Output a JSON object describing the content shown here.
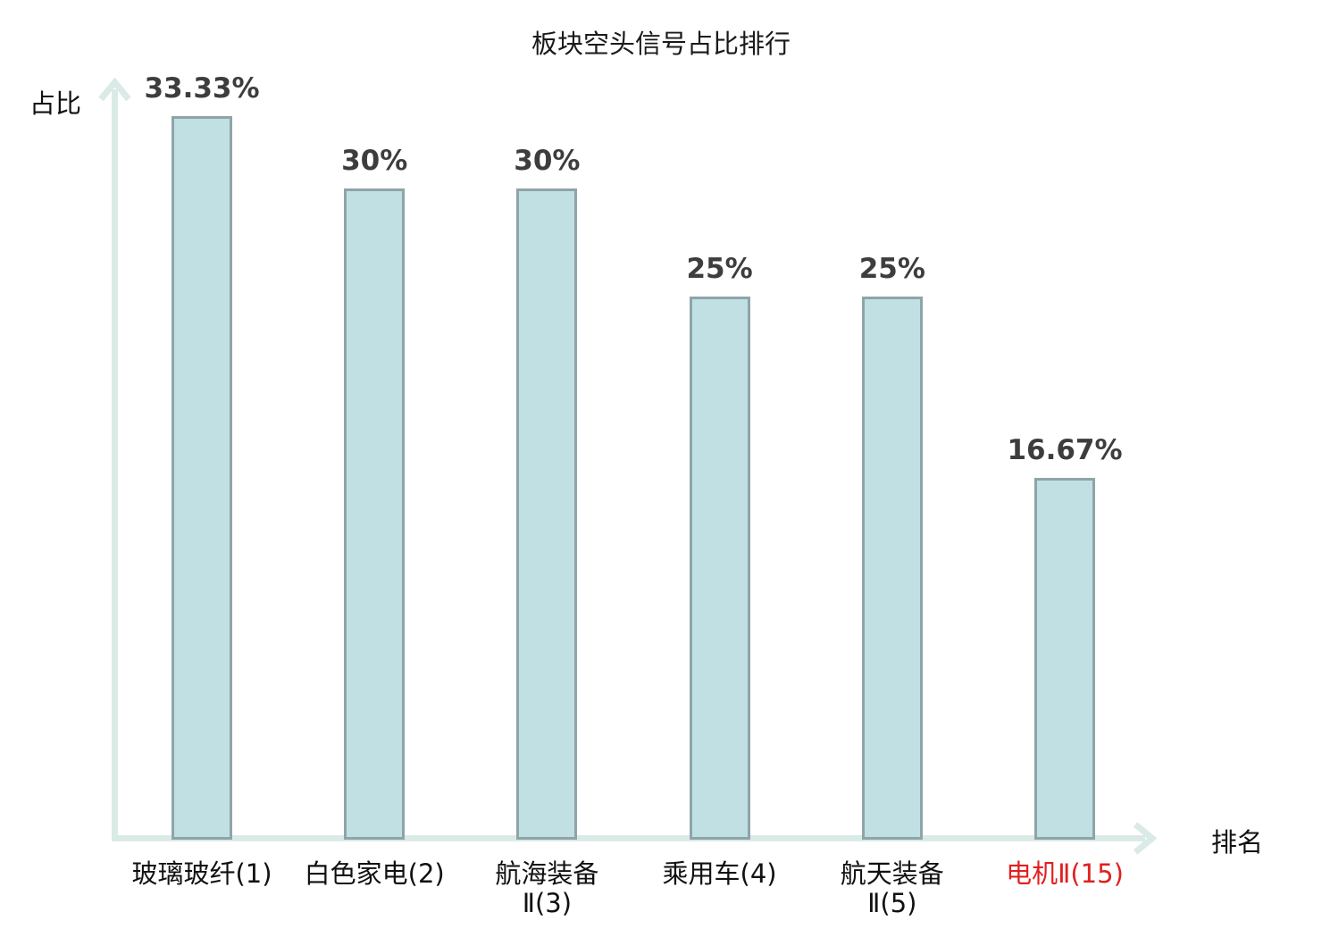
{
  "title": "板块空头信号占比排行",
  "axes": {
    "y_label": "占比",
    "x_label": "排名"
  },
  "colors": {
    "bar_fill": "#c1e0e4",
    "bar_border": "#8fa4a8",
    "axis": "#daeae7",
    "value_label": "#3d3d3d",
    "category_label": "#111111",
    "highlight": "#e02020",
    "title": "#1a1a1a",
    "background": "#ffffff"
  },
  "chart_data": {
    "type": "bar",
    "title": "板块空头信号占比排行",
    "xlabel": "排名",
    "ylabel": "占比",
    "categories": [
      "玻璃玻纤(1)",
      "白色家电(2)",
      "航海装备Ⅱ(3)",
      "乘用车(4)",
      "航天装备Ⅱ(5)",
      "电机Ⅱ(15)"
    ],
    "category_lines": [
      [
        "玻璃玻纤(1)"
      ],
      [
        "白色家电(2)"
      ],
      [
        "航海装备",
        "Ⅱ(3)"
      ],
      [
        "乘用车(4)"
      ],
      [
        "航天装备",
        "Ⅱ(5)"
      ],
      [
        "电机Ⅱ(15)"
      ]
    ],
    "values": [
      33.33,
      30,
      30,
      25,
      25,
      16.67
    ],
    "value_labels": [
      "33.33%",
      "30%",
      "30%",
      "25%",
      "25%",
      "16.67%"
    ],
    "highlighted_index": 5,
    "ylim": [
      0,
      35
    ],
    "grid": false,
    "legend": null
  }
}
